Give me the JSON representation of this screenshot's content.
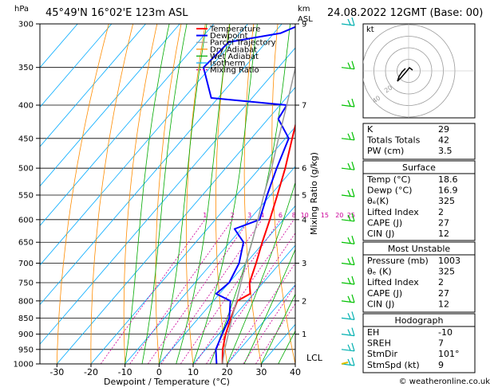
{
  "header": {
    "location": "45°49'N  16°02'E  123m  ASL",
    "datetime": "24.08.2022  12GMT  (Base: 00)",
    "unit_hpa": "hPa",
    "unit_km": "km",
    "unit_asl": "ASL"
  },
  "colors": {
    "temperature": "#ff0000",
    "dewpoint": "#0000ff",
    "parcel": "#999999",
    "dry_adiabat": "#ff8c00",
    "wet_adiabat": "#00aa00",
    "isotherm": "#00aaff",
    "mixing_ratio": "#cc0099",
    "wind": "#00c000"
  },
  "legend": [
    "Temperature",
    "Dewpoint",
    "Parcel Trajectory",
    "Dry Adiabat",
    "Wet Adiabat",
    "Isotherm",
    "Mixing Ratio"
  ],
  "axis": {
    "xlabel": "Dewpoint / Temperature (°C)",
    "ylabel_right": "Mixing Ratio (g/kg)",
    "lcl_label": "LCL",
    "footer": "© weatheronline.co.uk"
  },
  "indices": {
    "rows": [
      {
        "k": "K",
        "v": "29"
      },
      {
        "k": "Totals Totals",
        "v": "42"
      },
      {
        "k": "PW (cm)",
        "v": "3.5"
      }
    ]
  },
  "surface": {
    "title": "Surface",
    "rows": [
      {
        "k": "Temp (°C)",
        "v": "18.6"
      },
      {
        "k": "Dewp (°C)",
        "v": "16.9"
      },
      {
        "k": "θₑ(K)",
        "v": "325"
      },
      {
        "k": "Lifted Index",
        "v": "2"
      },
      {
        "k": "CAPE (J)",
        "v": "27"
      },
      {
        "k": "CIN (J)",
        "v": "12"
      }
    ]
  },
  "most_unstable": {
    "title": "Most Unstable",
    "rows": [
      {
        "k": "Pressure (mb)",
        "v": "1003"
      },
      {
        "k": "θₑ (K)",
        "v": "325"
      },
      {
        "k": "Lifted Index",
        "v": "2"
      },
      {
        "k": "CAPE (J)",
        "v": "27"
      },
      {
        "k": "CIN (J)",
        "v": "12"
      }
    ]
  },
  "hodograph": {
    "title": "Hodograph",
    "label": "kt",
    "ring_labels": [
      "20",
      "40"
    ],
    "rows": [
      {
        "k": "EH",
        "v": "-10"
      },
      {
        "k": "SREH",
        "v": "7"
      },
      {
        "k": "StmDir",
        "v": "101°"
      },
      {
        "k": "StmSpd (kt)",
        "v": "9"
      }
    ]
  },
  "chart_data": {
    "type": "line",
    "subtype": "skew-T log-P",
    "xlabel": "Dewpoint / Temperature (°C)",
    "ylabel": "hPa",
    "x_ticks": [
      -30,
      -20,
      -10,
      0,
      10,
      20,
      30,
      40
    ],
    "xlim": [
      -35,
      40
    ],
    "ylim": [
      1000,
      300
    ],
    "y_scale": "log",
    "pressure_ticks": [
      300,
      350,
      400,
      450,
      500,
      550,
      600,
      650,
      700,
      750,
      800,
      850,
      900,
      950,
      1000
    ],
    "km_ticks": [
      {
        "p": 300,
        "km": "9"
      },
      {
        "p": 400,
        "km": "7"
      },
      {
        "p": 500,
        "km": "6"
      },
      {
        "p": 550,
        "km": "5"
      },
      {
        "p": 600,
        "km": "4"
      },
      {
        "p": 700,
        "km": "3"
      },
      {
        "p": 800,
        "km": "2"
      },
      {
        "p": 900,
        "km": "1"
      }
    ],
    "mixing_ratio_labels": [
      "1",
      "2",
      "3",
      "4",
      "6",
      "8",
      "10",
      "15",
      "20",
      "25"
    ],
    "mixing_ratio_values": [
      1,
      2,
      3,
      4,
      6,
      8,
      10,
      15,
      20,
      25
    ],
    "series": [
      {
        "name": "Temperature",
        "points": [
          [
            1000,
            18.6
          ],
          [
            950,
            15
          ],
          [
            900,
            12
          ],
          [
            850,
            9.5
          ],
          [
            800,
            7
          ],
          [
            780,
            9
          ],
          [
            750,
            6
          ],
          [
            700,
            3
          ],
          [
            650,
            -0.5
          ],
          [
            600,
            -4
          ],
          [
            550,
            -8
          ],
          [
            500,
            -12.5
          ],
          [
            450,
            -18
          ],
          [
            400,
            -24
          ],
          [
            350,
            -31
          ],
          [
            300,
            -40
          ]
        ]
      },
      {
        "name": "Dewpoint",
        "points": [
          [
            1000,
            16.9
          ],
          [
            950,
            13
          ],
          [
            900,
            11
          ],
          [
            850,
            9
          ],
          [
            800,
            5
          ],
          [
            780,
            -1
          ],
          [
            750,
            0
          ],
          [
            700,
            -2
          ],
          [
            650,
            -6
          ],
          [
            620,
            -12
          ],
          [
            600,
            -7
          ],
          [
            550,
            -11
          ],
          [
            500,
            -15
          ],
          [
            450,
            -19
          ],
          [
            420,
            -27
          ],
          [
            400,
            -28
          ],
          [
            390,
            -52
          ],
          [
            350,
            -62
          ],
          [
            320,
            -61
          ],
          [
            310,
            -48
          ],
          [
            300,
            -44
          ]
        ]
      },
      {
        "name": "Parcel Trajectory",
        "points": [
          [
            1000,
            18.6
          ],
          [
            950,
            15.6
          ],
          [
            900,
            12.8
          ],
          [
            850,
            9.8
          ],
          [
            800,
            6.8
          ],
          [
            750,
            3.5
          ],
          [
            700,
            0
          ],
          [
            650,
            -3.5
          ],
          [
            600,
            -7.5
          ],
          [
            550,
            -12
          ],
          [
            500,
            -16.5
          ],
          [
            450,
            -22
          ],
          [
            400,
            -28
          ],
          [
            350,
            -35
          ],
          [
            300,
            -43
          ]
        ]
      }
    ],
    "wind_barbs_hpa": [
      300,
      350,
      400,
      450,
      500,
      550,
      600,
      650,
      700,
      750,
      800,
      850,
      900,
      950,
      1000
    ],
    "legend_position": "top-right",
    "grid": true
  }
}
